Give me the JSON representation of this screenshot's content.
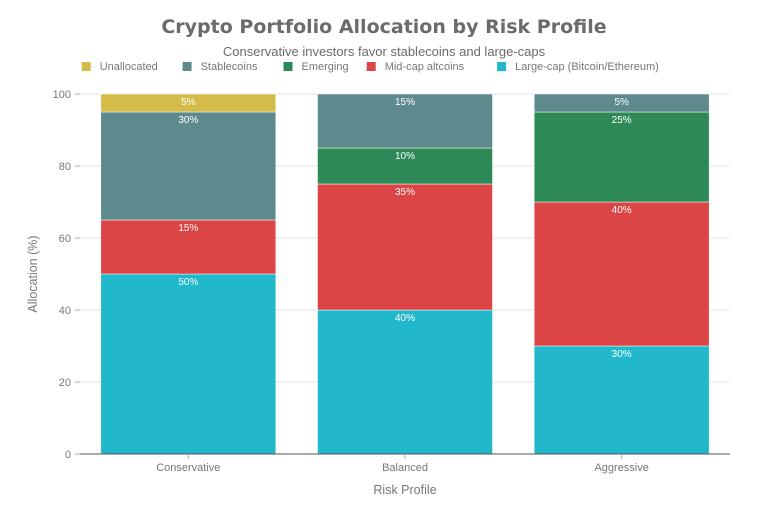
{
  "chart_data": {
    "type": "bar",
    "stacked": true,
    "title": "Crypto Portfolio Allocation by Risk Profile",
    "subtitle": "Conservative investors favor stablecoins and large-caps",
    "xlabel": "Risk Profile",
    "ylabel": "Allocation (%)",
    "ylim": [
      0,
      100
    ],
    "yticks": [
      0,
      20,
      40,
      60,
      80,
      100
    ],
    "grid": true,
    "legend_position": "top",
    "categories": [
      "Conservative",
      "Balanced",
      "Aggressive"
    ],
    "series": [
      {
        "name": "Large-cap (Bitcoin/Ethereum)",
        "color": "#22b8cc",
        "values": [
          50,
          40,
          30
        ]
      },
      {
        "name": "Mid-cap altcoins",
        "color": "#dc4545",
        "values": [
          15,
          35,
          40
        ]
      },
      {
        "name": "Emerging",
        "color": "#2d8a57",
        "values": [
          0,
          10,
          25
        ]
      },
      {
        "name": "Stablecoins",
        "color": "#5e8a8e",
        "values": [
          30,
          15,
          5
        ]
      },
      {
        "name": "Unallocated",
        "color": "#d4bc4a",
        "values": [
          5,
          0,
          0
        ]
      }
    ],
    "legend_order": [
      "Unallocated",
      "Stablecoins",
      "Emerging",
      "Mid-cap altcoins",
      "Large-cap (Bitcoin/Ethereum)"
    ],
    "value_label_suffix": "%"
  }
}
